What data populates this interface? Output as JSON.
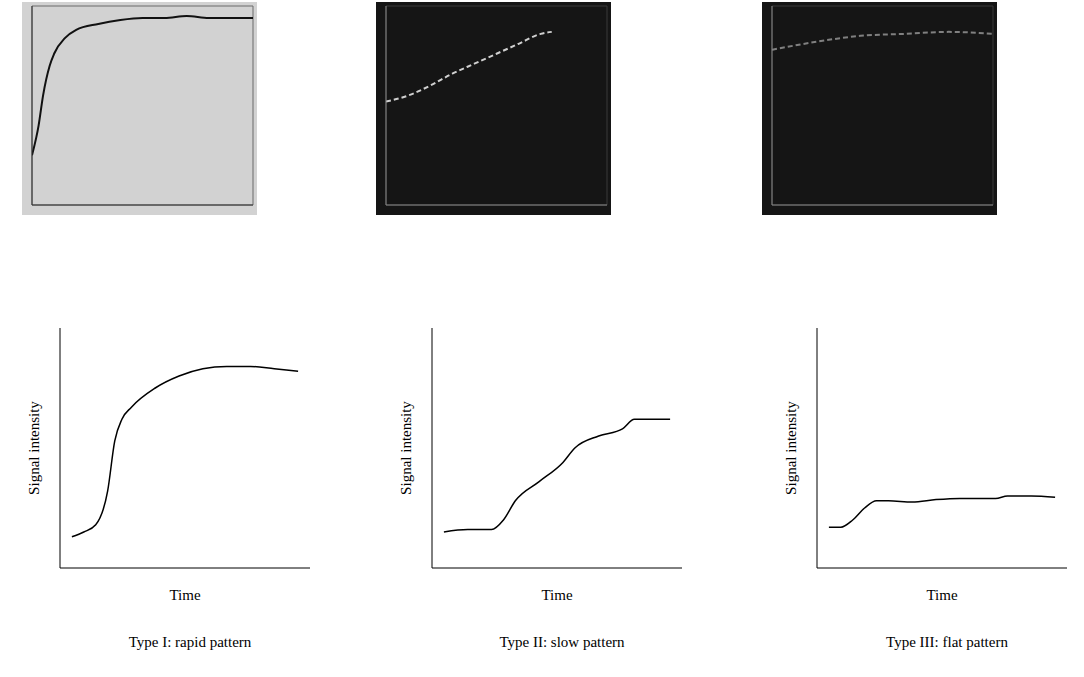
{
  "chart_data": [
    {
      "type": "line",
      "x": [
        0,
        0.3,
        0.5,
        0.8,
        1,
        1.5,
        2,
        3,
        4,
        5,
        6,
        7,
        8,
        9,
        10
      ],
      "values": [
        2.5,
        4,
        5.5,
        7,
        7.6,
        8.4,
        8.8,
        9.1,
        9.3,
        9.4,
        9.4,
        9.5,
        9.4,
        9.4,
        9.4
      ],
      "xlim": [
        0,
        10
      ],
      "ylim": [
        0,
        10
      ],
      "grid": true,
      "tick_labels": false,
      "color": "#111111",
      "marker": "none",
      "line_style": "solid"
    },
    {
      "type": "line",
      "x": [
        0,
        1,
        2,
        3,
        4,
        5,
        6,
        7,
        7.5
      ],
      "values": [
        5.2,
        5.5,
        6,
        6.6,
        7.1,
        7.6,
        8.1,
        8.6,
        8.7
      ],
      "xlim": [
        0,
        10
      ],
      "ylim": [
        0,
        10
      ],
      "grid": true,
      "tick_labels": false,
      "color": "#d0d0d0",
      "marker": "none",
      "line_style": "dashed"
    },
    {
      "type": "line",
      "x": [
        0,
        2,
        4,
        6,
        8,
        10
      ],
      "values": [
        7.8,
        8.2,
        8.5,
        8.6,
        8.7,
        8.6
      ],
      "xlim": [
        0,
        10
      ],
      "ylim": [
        0,
        10
      ],
      "grid": true,
      "tick_labels": false,
      "color": "#808080",
      "marker": "none",
      "line_style": "dashed"
    },
    {
      "type": "line",
      "title": "Type I: rapid pattern",
      "x_label": "Time",
      "y_label": "Signal intensity",
      "x": [
        0.5,
        1,
        1.5,
        2,
        2.3,
        2.6,
        3,
        4,
        5,
        6,
        7,
        8,
        9,
        10
      ],
      "values": [
        1.3,
        1.5,
        1.8,
        3.2,
        5.3,
        6.2,
        6.7,
        7.5,
        8,
        8.3,
        8.4,
        8.4,
        8.3,
        8.2
      ],
      "xlim": [
        0,
        10.5
      ],
      "ylim": [
        0,
        10
      ],
      "grid": false,
      "tick_labels": false,
      "color": "#000000",
      "marker": "none",
      "line_style": "solid"
    },
    {
      "type": "line",
      "title": "Type II: slow pattern",
      "x_label": "Time",
      "y_label": "Signal intensity",
      "x": [
        0.5,
        1.5,
        2.5,
        3,
        3.5,
        4.5,
        5.5,
        6,
        7,
        8,
        8.5,
        10
      ],
      "values": [
        1.5,
        1.6,
        1.6,
        2,
        2.8,
        3.6,
        4.4,
        5,
        5.5,
        5.8,
        6.2,
        6.2
      ],
      "xlim": [
        0,
        10.5
      ],
      "ylim": [
        0,
        10
      ],
      "grid": false,
      "tick_labels": false,
      "color": "#000000",
      "marker": "none",
      "line_style": "solid"
    },
    {
      "type": "line",
      "title": "Type III: flat pattern",
      "x_label": "Time",
      "y_label": "Signal intensity",
      "x": [
        0.5,
        1,
        1.5,
        2,
        2.5,
        3,
        4,
        5,
        6,
        7,
        7.5,
        8,
        9,
        10
      ],
      "values": [
        1.7,
        1.7,
        2,
        2.5,
        2.8,
        2.8,
        2.75,
        2.85,
        2.9,
        2.9,
        2.9,
        3,
        3,
        2.95
      ],
      "xlim": [
        0,
        10.5
      ],
      "ylim": [
        0,
        10
      ],
      "grid": false,
      "tick_labels": false,
      "color": "#000000",
      "marker": "none",
      "line_style": "solid"
    }
  ]
}
